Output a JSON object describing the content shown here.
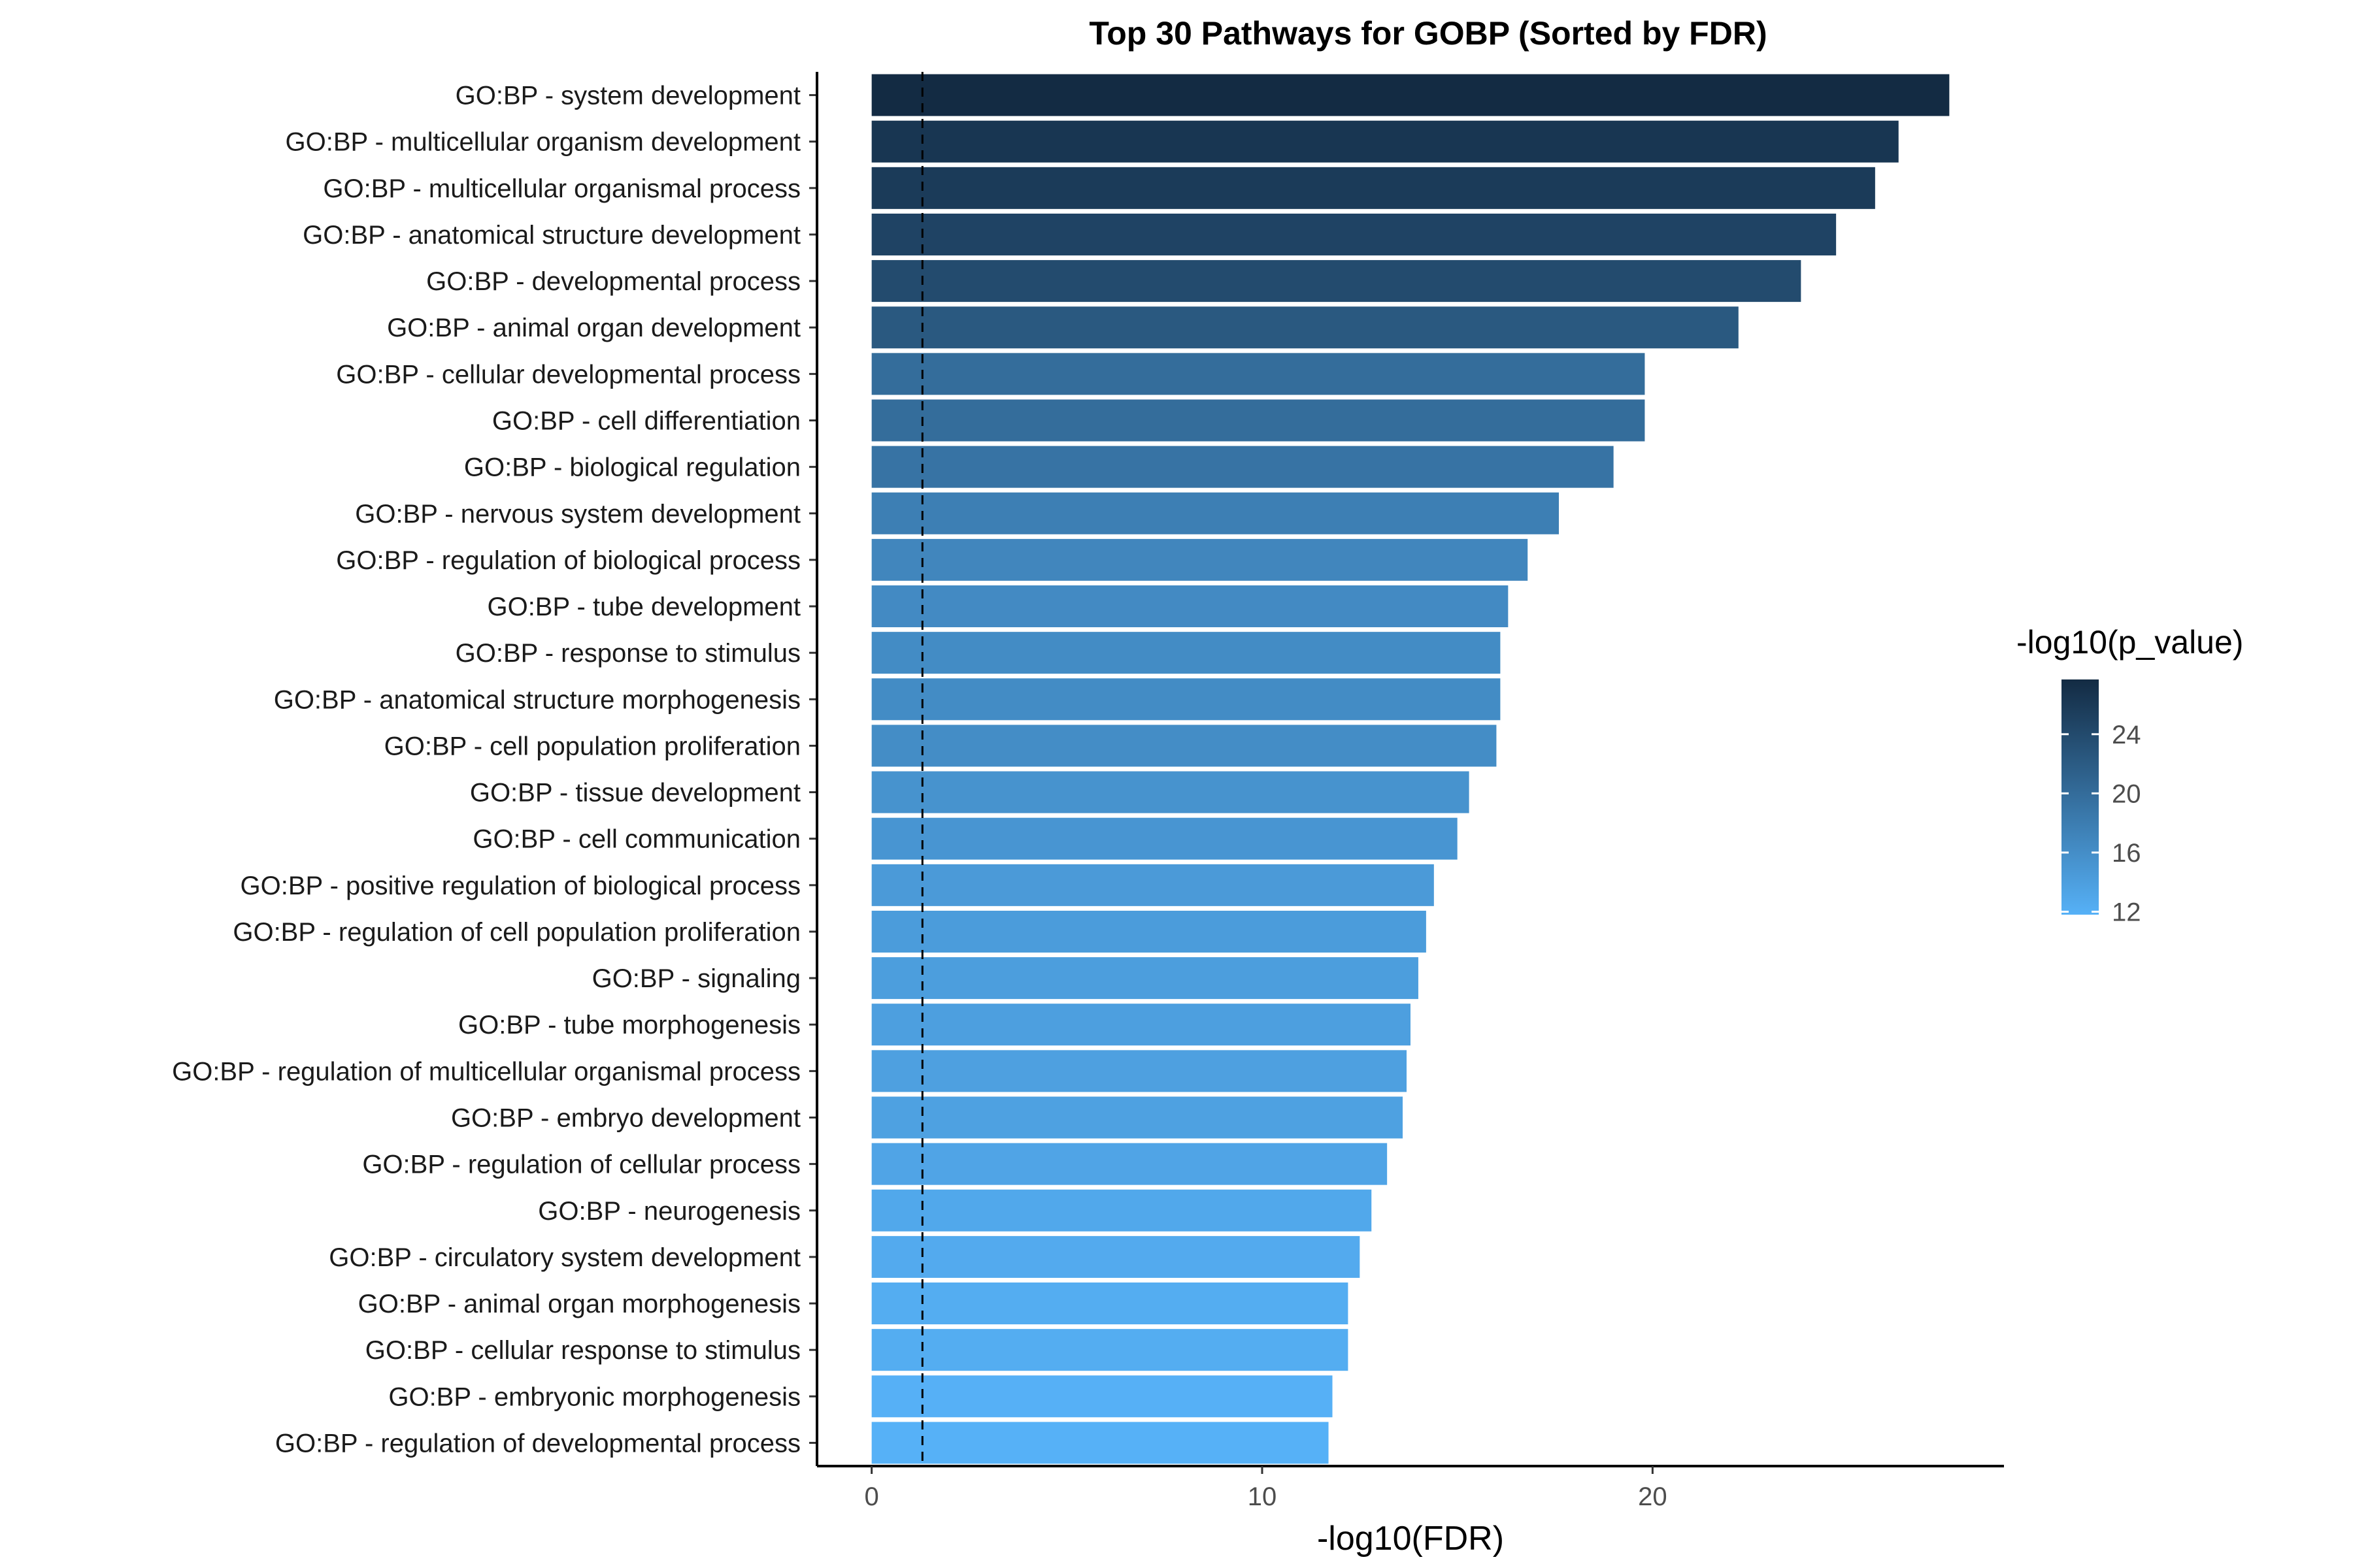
{
  "chart_data": {
    "type": "bar",
    "orientation": "horizontal",
    "title": "Top 30 Pathways for GOBP (Sorted by FDR)",
    "xlabel": "-log10(FDR)",
    "ylabel": "",
    "xlim": [
      -1.4,
      29.0
    ],
    "xticks": [
      0,
      10,
      20
    ],
    "reference_line": {
      "axis": "x",
      "value": 1.3,
      "style": "dashed"
    },
    "categories": [
      "GO:BP - system development",
      "GO:BP - multicellular organism development",
      "GO:BP - multicellular organismal process",
      "GO:BP - anatomical structure development",
      "GO:BP - developmental process",
      "GO:BP - animal organ development",
      "GO:BP - cellular developmental process",
      "GO:BP - cell differentiation",
      "GO:BP - biological regulation",
      "GO:BP - nervous system development",
      "GO:BP - regulation of biological process",
      "GO:BP - tube development",
      "GO:BP - response to stimulus",
      "GO:BP - anatomical structure morphogenesis",
      "GO:BP - cell population proliferation",
      "GO:BP - tissue development",
      "GO:BP - cell communication",
      "GO:BP - positive regulation of biological process",
      "GO:BP - regulation of cell population proliferation",
      "GO:BP - signaling",
      "GO:BP - tube morphogenesis",
      "GO:BP - regulation of multicellular organismal process",
      "GO:BP - embryo development",
      "GO:BP - regulation of cellular process",
      "GO:BP - neurogenesis",
      "GO:BP - circulatory system development",
      "GO:BP - animal organ morphogenesis",
      "GO:BP - cellular response to stimulus",
      "GO:BP - embryonic morphogenesis",
      "GO:BP - regulation of developmental process"
    ],
    "values": [
      27.6,
      26.3,
      25.7,
      24.7,
      23.8,
      22.2,
      19.8,
      19.8,
      19.0,
      17.6,
      16.8,
      16.3,
      16.1,
      16.1,
      16.0,
      15.3,
      15.0,
      14.4,
      14.2,
      14.0,
      13.8,
      13.7,
      13.6,
      13.2,
      12.8,
      12.5,
      12.2,
      12.2,
      11.8,
      11.7
    ],
    "color_values": [
      27.7,
      26.4,
      25.8,
      24.8,
      23.9,
      22.3,
      19.9,
      19.9,
      19.1,
      17.7,
      16.9,
      16.4,
      16.2,
      16.2,
      16.1,
      15.4,
      15.1,
      14.5,
      14.3,
      14.1,
      13.9,
      13.8,
      13.7,
      13.3,
      12.9,
      12.6,
      12.3,
      12.3,
      11.9,
      11.8
    ],
    "legend": {
      "title": "-log10(p_value)",
      "placement": "right",
      "ticks": [
        24,
        20,
        16,
        12
      ],
      "range": [
        11.8,
        27.7
      ],
      "low_color": "#56B1F7",
      "high_color": "#132B43"
    },
    "grid": false
  }
}
